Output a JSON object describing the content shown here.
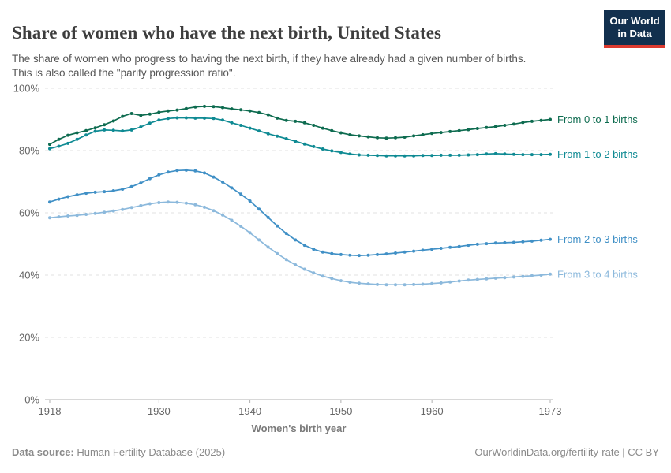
{
  "header": {
    "title": "Share of women who have the next birth, United States",
    "subtitle": "The share of women who progress to having the next birth, if they have already had a given number of births.\nThis is also called the \"parity progression ratio\".",
    "logo": {
      "line1": "Our World",
      "line2": "in Data",
      "bg_color": "#12304e",
      "stripe_color": "#dc3a2f"
    }
  },
  "chart_data": {
    "type": "line",
    "title": "Share of women who have the next birth, United States",
    "xlabel": "Women's birth year",
    "ylabel": "",
    "xlim": [
      1918,
      1973
    ],
    "ylim": [
      0,
      100
    ],
    "x_ticks": [
      1918,
      1930,
      1940,
      1950,
      1960,
      1973
    ],
    "y_ticks": [
      0,
      20,
      40,
      60,
      80,
      100
    ],
    "y_tick_suffix": "%",
    "grid": "horizontal-dashed",
    "legend_position": "line-end-labels-right",
    "markers": true,
    "colors": {
      "axis_text": "#666666",
      "gridline": "#e0e0e0",
      "axis_line": "#b0b0b0"
    },
    "x": [
      1918,
      1919,
      1920,
      1921,
      1922,
      1923,
      1924,
      1925,
      1926,
      1927,
      1928,
      1929,
      1930,
      1931,
      1932,
      1933,
      1934,
      1935,
      1936,
      1937,
      1938,
      1939,
      1940,
      1941,
      1942,
      1943,
      1944,
      1945,
      1946,
      1947,
      1948,
      1949,
      1950,
      1951,
      1952,
      1953,
      1954,
      1955,
      1956,
      1957,
      1958,
      1959,
      1960,
      1961,
      1962,
      1963,
      1964,
      1965,
      1966,
      1967,
      1968,
      1969,
      1970,
      1971,
      1972,
      1973
    ],
    "series": [
      {
        "name": "From 0 to 1 births",
        "color": "#0d6b4f",
        "values": [
          82.0,
          83.6,
          84.9,
          85.7,
          86.4,
          87.3,
          88.3,
          89.5,
          91.0,
          91.9,
          91.3,
          91.7,
          92.3,
          92.7,
          93.0,
          93.5,
          94.0,
          94.2,
          94.1,
          93.8,
          93.4,
          93.1,
          92.7,
          92.2,
          91.5,
          90.4,
          89.7,
          89.4,
          88.9,
          88.1,
          87.2,
          86.4,
          85.7,
          85.1,
          84.7,
          84.4,
          84.1,
          84.0,
          84.1,
          84.3,
          84.7,
          85.1,
          85.5,
          85.8,
          86.1,
          86.4,
          86.7,
          87.1,
          87.4,
          87.7,
          88.1,
          88.5,
          89.0,
          89.4,
          89.7,
          90.0
        ]
      },
      {
        "name": "From 1 to 2 births",
        "color": "#0e8a93",
        "values": [
          80.6,
          81.4,
          82.3,
          83.6,
          85.0,
          86.2,
          86.6,
          86.5,
          86.3,
          86.6,
          87.6,
          88.8,
          89.8,
          90.3,
          90.5,
          90.5,
          90.4,
          90.4,
          90.3,
          89.8,
          88.9,
          88.1,
          87.2,
          86.3,
          85.4,
          84.6,
          83.8,
          83.0,
          82.1,
          81.3,
          80.5,
          79.9,
          79.4,
          78.9,
          78.6,
          78.5,
          78.4,
          78.3,
          78.3,
          78.3,
          78.3,
          78.4,
          78.4,
          78.5,
          78.5,
          78.5,
          78.6,
          78.7,
          78.9,
          79.0,
          78.9,
          78.8,
          78.7,
          78.7,
          78.7,
          78.8
        ]
      },
      {
        "name": "From 2 to 3 births",
        "color": "#4090c6",
        "values": [
          63.5,
          64.4,
          65.2,
          65.8,
          66.3,
          66.6,
          66.8,
          67.1,
          67.6,
          68.4,
          69.6,
          71.0,
          72.2,
          73.1,
          73.6,
          73.7,
          73.5,
          72.8,
          71.5,
          69.9,
          68.0,
          66.0,
          63.8,
          61.2,
          58.5,
          55.8,
          53.4,
          51.3,
          49.6,
          48.3,
          47.4,
          46.9,
          46.6,
          46.4,
          46.3,
          46.4,
          46.6,
          46.8,
          47.1,
          47.4,
          47.7,
          48.0,
          48.3,
          48.6,
          48.9,
          49.2,
          49.6,
          49.9,
          50.1,
          50.3,
          50.4,
          50.5,
          50.7,
          50.9,
          51.2,
          51.5
        ]
      },
      {
        "name": "From 3 to 4 births",
        "color": "#8cb9dc",
        "values": [
          58.4,
          58.7,
          59.0,
          59.2,
          59.5,
          59.8,
          60.2,
          60.6,
          61.1,
          61.7,
          62.3,
          62.9,
          63.3,
          63.5,
          63.4,
          63.1,
          62.6,
          61.8,
          60.7,
          59.3,
          57.6,
          55.7,
          53.6,
          51.3,
          49.0,
          46.9,
          45.0,
          43.3,
          41.9,
          40.7,
          39.7,
          38.9,
          38.2,
          37.7,
          37.4,
          37.2,
          37.0,
          36.9,
          36.9,
          36.9,
          37.0,
          37.1,
          37.3,
          37.5,
          37.8,
          38.1,
          38.4,
          38.6,
          38.8,
          39.0,
          39.2,
          39.4,
          39.6,
          39.8,
          40.0,
          40.3
        ]
      }
    ]
  },
  "footer": {
    "source_label": "Data source:",
    "source_value": " Human Fertility Database (2025)",
    "right_text": "OurWorldinData.org/fertility-rate | CC BY"
  }
}
